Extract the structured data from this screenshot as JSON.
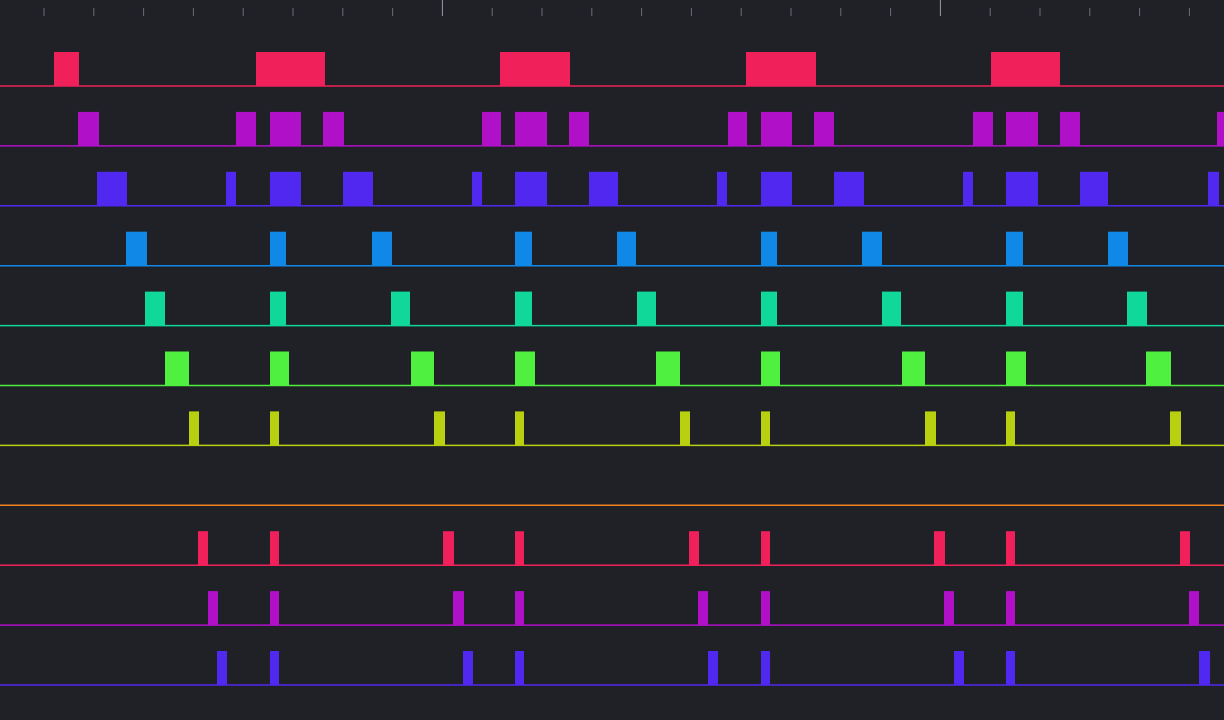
{
  "channels": [
    {
      "color": "#f0205a"
    },
    {
      "color": "#b010c8"
    },
    {
      "color": "#5028f0"
    },
    {
      "color": "#1088e8"
    },
    {
      "color": "#10d898"
    },
    {
      "color": "#50f040"
    },
    {
      "color": "#b8d010"
    },
    {
      "color": "#f08020"
    },
    {
      "color": "#f0205a"
    },
    {
      "color": "#b010c8"
    },
    {
      "color": "#5028f0"
    }
  ]
}
